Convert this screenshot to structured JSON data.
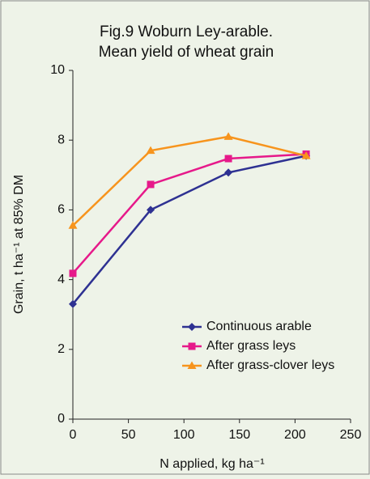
{
  "chart_data": {
    "type": "line",
    "title": [
      "Fig.9 Woburn Ley-arable.",
      "Mean yield of wheat grain"
    ],
    "x_label": "N applied, kg ha⁻¹",
    "y_label": "Grain, t ha⁻¹ at 85% DM",
    "x": [
      0,
      70,
      140,
      210
    ],
    "series": [
      {
        "name": "Continuous arable",
        "color": "#2e3192",
        "marker": "diamond",
        "values": [
          3.3,
          6.0,
          7.07,
          7.55
        ]
      },
      {
        "name": "After grass leys",
        "color": "#e6198a",
        "marker": "square",
        "values": [
          4.18,
          6.73,
          7.47,
          7.6
        ]
      },
      {
        "name": "After grass-clover leys",
        "color": "#f7941d",
        "marker": "triangle",
        "values": [
          5.55,
          7.7,
          8.1,
          7.55
        ]
      }
    ],
    "xlim": [
      0,
      250
    ],
    "xticks": [
      0,
      50,
      100,
      150,
      200,
      250
    ],
    "ylim": [
      0,
      10
    ],
    "yticks": [
      0,
      2,
      4,
      6,
      8,
      10
    ],
    "grid": false,
    "legend": "lower-right"
  }
}
